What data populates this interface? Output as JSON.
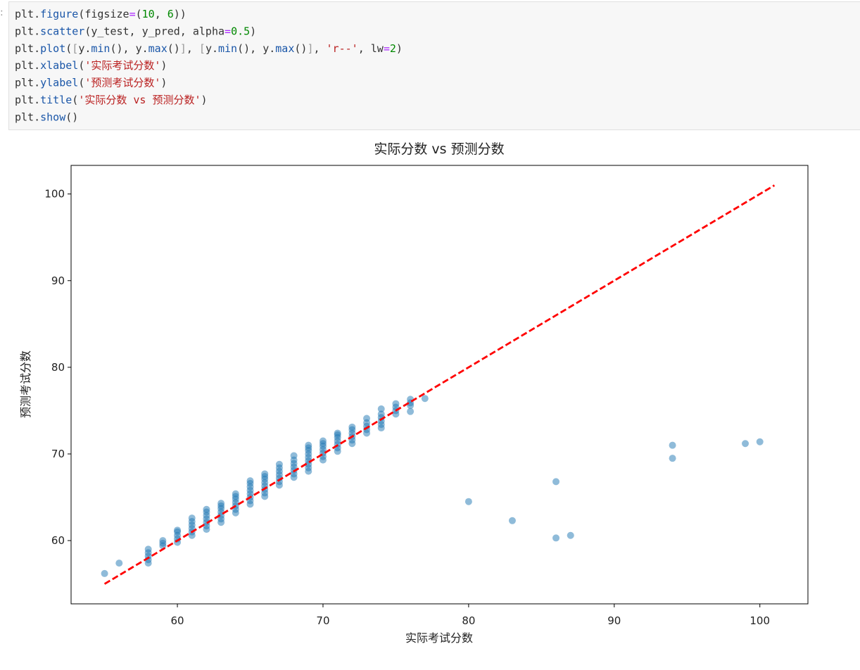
{
  "prompt": ":",
  "code": {
    "lines": [
      [
        [
          "plt.",
          "#333333"
        ],
        [
          "figure",
          "#1a56a8"
        ],
        [
          "(figsize",
          "#333333"
        ],
        [
          "=",
          "#aa22ff"
        ],
        [
          "(",
          "#333333"
        ],
        [
          "10",
          "#008800"
        ],
        [
          ", ",
          "#333333"
        ],
        [
          "6",
          "#008800"
        ],
        [
          "))",
          "#333333"
        ]
      ],
      [
        [
          "plt.",
          "#333333"
        ],
        [
          "scatter",
          "#1a56a8"
        ],
        [
          "(y_test, y_pred, alpha",
          "#333333"
        ],
        [
          "=",
          "#aa22ff"
        ],
        [
          "0.5",
          "#008800"
        ],
        [
          ")",
          "#333333"
        ]
      ],
      [
        [
          "plt.",
          "#333333"
        ],
        [
          "plot",
          "#1a56a8"
        ],
        [
          "(",
          "#333333"
        ],
        [
          "[",
          "#999999"
        ],
        [
          "y.",
          "#333333"
        ],
        [
          "min",
          "#1a56a8"
        ],
        [
          "(), y.",
          "#333333"
        ],
        [
          "max",
          "#1a56a8"
        ],
        [
          "()",
          "#333333"
        ],
        [
          "]",
          "#999999"
        ],
        [
          ", ",
          "#333333"
        ],
        [
          "[",
          "#999999"
        ],
        [
          "y.",
          "#333333"
        ],
        [
          "min",
          "#1a56a8"
        ],
        [
          "(), y.",
          "#333333"
        ],
        [
          "max",
          "#1a56a8"
        ],
        [
          "()",
          "#333333"
        ],
        [
          "]",
          "#999999"
        ],
        [
          ", ",
          "#333333"
        ],
        [
          "'r--'",
          "#ba2121"
        ],
        [
          ", lw",
          "#333333"
        ],
        [
          "=",
          "#aa22ff"
        ],
        [
          "2",
          "#008800"
        ],
        [
          ")",
          "#333333"
        ]
      ],
      [
        [
          "plt.",
          "#333333"
        ],
        [
          "xlabel",
          "#1a56a8"
        ],
        [
          "(",
          "#333333"
        ],
        [
          "'实际考试分数'",
          "#ba2121"
        ],
        [
          ")",
          "#333333"
        ]
      ],
      [
        [
          "plt.",
          "#333333"
        ],
        [
          "ylabel",
          "#1a56a8"
        ],
        [
          "(",
          "#333333"
        ],
        [
          "'预测考试分数'",
          "#ba2121"
        ],
        [
          ")",
          "#333333"
        ]
      ],
      [
        [
          "plt.",
          "#333333"
        ],
        [
          "title",
          "#1a56a8"
        ],
        [
          "(",
          "#333333"
        ],
        [
          "'实际分数 vs 预测分数'",
          "#ba2121"
        ],
        [
          ")",
          "#333333"
        ]
      ],
      [
        [
          "plt.",
          "#333333"
        ],
        [
          "show",
          "#1a56a8"
        ],
        [
          "()",
          "#333333"
        ]
      ]
    ]
  },
  "chart_data": {
    "type": "scatter",
    "title": "实际分数 vs 预测分数",
    "xlabel": "实际考试分数",
    "ylabel": "预测考试分数",
    "color": "#1f77b4",
    "alpha": 0.5,
    "x": [
      55,
      56,
      58,
      58,
      58,
      58,
      58,
      59,
      59,
      59,
      60,
      60,
      60,
      60,
      60,
      61,
      61,
      61,
      61,
      61,
      61,
      62,
      62,
      62,
      62,
      62,
      62,
      62,
      63,
      63,
      63,
      63,
      63,
      63,
      63,
      64,
      64,
      64,
      64,
      64,
      64,
      64,
      65,
      65,
      65,
      65,
      65,
      65,
      65,
      65,
      66,
      66,
      66,
      66,
      66,
      66,
      66,
      66,
      67,
      67,
      67,
      67,
      67,
      67,
      67,
      68,
      68,
      68,
      68,
      68,
      68,
      68,
      69,
      69,
      69,
      69,
      69,
      69,
      69,
      69,
      69,
      70,
      70,
      70,
      70,
      70,
      70,
      70,
      71,
      71,
      71,
      71,
      71,
      71,
      71,
      72,
      72,
      72,
      72,
      72,
      72,
      73,
      73,
      73,
      73,
      73,
      74,
      74,
      74,
      74,
      74,
      74,
      75,
      75,
      75,
      75,
      76,
      76,
      76,
      76,
      77,
      80,
      83,
      86,
      86,
      87,
      94,
      94,
      99,
      100
    ],
    "y": [
      56.2,
      57.4,
      57.4,
      57.8,
      58.2,
      58.6,
      59.0,
      59.4,
      59.7,
      60.0,
      59.8,
      60.2,
      60.6,
      61.0,
      61.2,
      60.6,
      61.0,
      61.4,
      61.8,
      62.2,
      62.6,
      61.3,
      61.7,
      62.1,
      62.5,
      62.9,
      63.3,
      63.6,
      62.1,
      62.5,
      62.9,
      63.3,
      63.7,
      64.0,
      64.3,
      63.2,
      63.6,
      64.0,
      64.4,
      64.8,
      65.1,
      65.4,
      64.2,
      64.6,
      65.0,
      65.4,
      65.8,
      66.2,
      66.6,
      66.9,
      65.1,
      65.5,
      65.9,
      66.3,
      66.7,
      67.1,
      67.4,
      67.7,
      66.4,
      66.8,
      67.2,
      67.6,
      68.0,
      68.4,
      68.8,
      67.3,
      67.7,
      68.1,
      68.5,
      68.9,
      69.3,
      69.8,
      68.0,
      68.4,
      68.8,
      69.2,
      69.6,
      70.0,
      70.4,
      70.7,
      71.0,
      69.3,
      69.7,
      70.1,
      70.5,
      70.9,
      71.2,
      71.5,
      70.3,
      70.7,
      71.1,
      71.5,
      71.9,
      72.2,
      72.4,
      71.2,
      71.6,
      72.0,
      72.4,
      72.8,
      73.1,
      72.4,
      72.8,
      73.2,
      73.6,
      74.1,
      73.0,
      73.4,
      73.8,
      74.2,
      74.6,
      75.2,
      74.6,
      75.0,
      75.4,
      75.8,
      74.9,
      75.6,
      75.9,
      76.3,
      76.4,
      64.5,
      62.3,
      66.8,
      60.3,
      60.6,
      71.0,
      69.5,
      71.2,
      71.4
    ],
    "line": {
      "x": [
        55,
        101
      ],
      "y": [
        55,
        101
      ],
      "color": "#ff0000",
      "dashed": true,
      "width": 2
    },
    "xlim": [
      52.7,
      103.3
    ],
    "ylim": [
      52.7,
      103.3
    ],
    "xticks": [
      60,
      70,
      80,
      90,
      100
    ],
    "yticks": [
      60,
      70,
      80,
      90,
      100
    ],
    "grid": false
  }
}
